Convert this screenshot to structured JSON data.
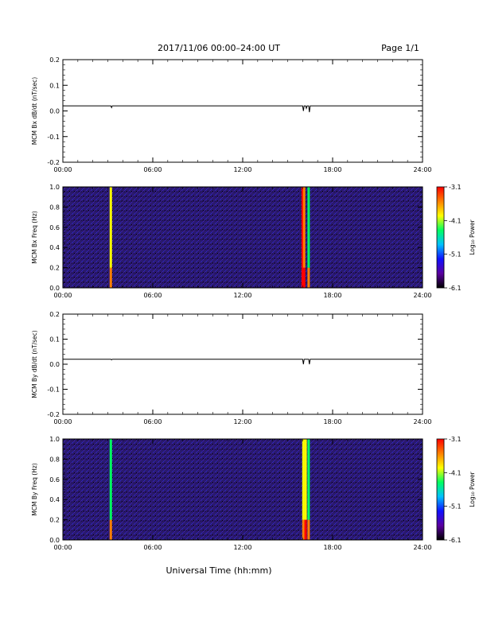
{
  "header": {
    "title": "2017/11/06  00:00–24:00 UT",
    "page": "Page 1/1"
  },
  "xlabel_bottom": "Universal Time (hh:mm)",
  "x_ticks": [
    "00:00",
    "06:00",
    "12:00",
    "18:00",
    "24:00"
  ],
  "colorbar": {
    "label": "Log₁₀ Power",
    "ticks": [
      "-3.1",
      "-4.1",
      "-5.1",
      "-6.1"
    ],
    "range": [
      -6.1,
      -3.1
    ]
  },
  "colors": {
    "spectro_bg": "#2a1a6e",
    "colormap": [
      "#000000",
      "#5a00a0",
      "#1010ff",
      "#00c0ff",
      "#00ff60",
      "#ffff00",
      "#ff8000",
      "#ff0000"
    ]
  },
  "chart_data": [
    {
      "type": "line",
      "name": "bx-dbdt",
      "ylabel": "MCM Bx dB/dt (nT/sec)",
      "ylim": [
        -0.2,
        0.2
      ],
      "y_ticks": [
        "0.2",
        "0.1",
        "0.0",
        "-0.1",
        "-0.2"
      ],
      "y_tick_values": [
        0.2,
        0.1,
        0.0,
        -0.1,
        -0.2
      ],
      "xlim_hours": [
        0,
        24
      ],
      "baseline": 0.02,
      "x": [
        0,
        3.2,
        3.25,
        3.3,
        16.0,
        16.05,
        16.1,
        16.2,
        16.25,
        16.3,
        16.4,
        16.45,
        16.5,
        24
      ],
      "y": [
        0.02,
        0.02,
        0.013,
        0.02,
        0.02,
        0.0,
        0.02,
        0.02,
        0.01,
        0.02,
        0.02,
        -0.005,
        0.02,
        0.02
      ]
    },
    {
      "type": "heatmap",
      "name": "bx-spectrogram",
      "ylabel": "MCM Bx Freq (Hz)",
      "ylim": [
        0.0,
        1.0
      ],
      "y_ticks": [
        "1.0",
        "0.8",
        "0.6",
        "0.4",
        "0.2",
        "0.0"
      ],
      "y_tick_values": [
        1.0,
        0.8,
        0.6,
        0.4,
        0.2,
        0.0
      ],
      "xlim_hours": [
        0,
        24
      ],
      "bright_bands": [
        {
          "hour": 3.2,
          "level": 0.65
        },
        {
          "hour": 16.0,
          "level": 0.95
        },
        {
          "hour": 16.1,
          "level": 0.85
        },
        {
          "hour": 16.4,
          "level": 0.6
        }
      ]
    },
    {
      "type": "line",
      "name": "by-dbdt",
      "ylabel": "MCM By dB/dt (nT/sec)",
      "ylim": [
        -0.2,
        0.2
      ],
      "y_ticks": [
        "0.2",
        "0.1",
        "0.0",
        "-0.1",
        "-0.2"
      ],
      "y_tick_values": [
        0.2,
        0.1,
        0.0,
        -0.1,
        -0.2
      ],
      "xlim_hours": [
        0,
        24
      ],
      "baseline": 0.02,
      "x": [
        0,
        3.2,
        3.25,
        3.3,
        16.0,
        16.05,
        16.1,
        16.4,
        16.45,
        16.5,
        24
      ],
      "y": [
        0.02,
        0.02,
        0.017,
        0.02,
        0.02,
        0.0,
        0.02,
        0.02,
        0.0,
        0.02,
        0.02
      ]
    },
    {
      "type": "heatmap",
      "name": "by-spectrogram",
      "ylabel": "MCM By Freq (Hz)",
      "ylim": [
        0.0,
        1.0
      ],
      "y_ticks": [
        "1.0",
        "0.8",
        "0.6",
        "0.4",
        "0.2",
        "0.0"
      ],
      "y_tick_values": [
        1.0,
        0.8,
        0.6,
        0.4,
        0.2,
        0.0
      ],
      "xlim_hours": [
        0,
        24
      ],
      "bright_bands": [
        {
          "hour": 3.2,
          "level": 0.6
        },
        {
          "hour": 16.05,
          "level": 0.7
        },
        {
          "hour": 16.2,
          "level": 0.75
        },
        {
          "hour": 16.4,
          "level": 0.6
        }
      ]
    }
  ]
}
